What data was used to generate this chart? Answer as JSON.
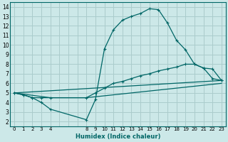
{
  "xlabel": "Humidex (Indice chaleur)",
  "bg_color": "#cce8e8",
  "grid_color": "#aacccc",
  "line_color": "#006666",
  "xlim": [
    -0.5,
    23.5
  ],
  "ylim": [
    1.5,
    14.5
  ],
  "all_xticks": [
    0,
    1,
    2,
    3,
    4,
    5,
    6,
    7,
    8,
    9,
    10,
    11,
    12,
    13,
    14,
    15,
    16,
    17,
    18,
    19,
    20,
    21,
    22,
    23
  ],
  "labeled_xticks": [
    0,
    1,
    2,
    3,
    4,
    8,
    9,
    10,
    11,
    12,
    13,
    14,
    15,
    16,
    17,
    18,
    19,
    20,
    21,
    22,
    23
  ],
  "yticks": [
    2,
    3,
    4,
    5,
    6,
    7,
    8,
    9,
    10,
    11,
    12,
    13,
    14
  ],
  "line1_x": [
    0,
    1,
    2,
    3,
    4,
    8,
    9,
    10,
    11,
    12,
    13,
    14,
    15,
    16,
    17,
    18,
    19,
    20,
    21,
    22,
    23
  ],
  "line1_y": [
    5.0,
    4.8,
    4.5,
    4.0,
    3.3,
    2.2,
    4.3,
    9.6,
    11.6,
    12.6,
    13.0,
    13.3,
    13.8,
    13.7,
    12.3,
    10.5,
    9.5,
    8.0,
    7.6,
    7.5,
    6.3
  ],
  "line2_x": [
    0,
    1,
    2,
    3,
    4,
    8,
    9,
    10,
    11,
    12,
    13,
    14,
    15,
    16,
    17,
    18,
    19,
    20,
    21,
    22,
    23
  ],
  "line2_y": [
    5.0,
    4.8,
    4.5,
    4.5,
    4.5,
    4.5,
    5.0,
    5.5,
    6.0,
    6.2,
    6.5,
    6.8,
    7.0,
    7.3,
    7.5,
    7.7,
    8.0,
    8.0,
    7.6,
    6.5,
    6.3
  ],
  "line3_x": [
    0,
    23
  ],
  "line3_y": [
    5.0,
    6.3
  ],
  "line4_x": [
    0,
    4,
    8,
    23
  ],
  "line4_y": [
    5.0,
    4.5,
    4.5,
    6.0
  ]
}
